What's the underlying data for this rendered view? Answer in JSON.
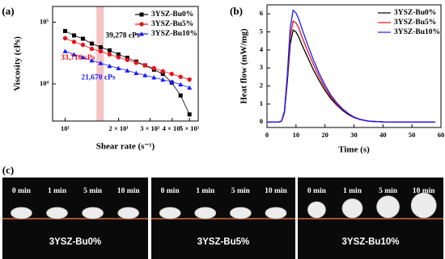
{
  "chart_data": [
    {
      "type": "line",
      "panel_label": "(a)",
      "xlabel": "Shear rate (s⁻¹)",
      "ylabel": "Viscosity (cPs)",
      "xscale": "log",
      "yscale": "log",
      "x": [
        10,
        11.22,
        12.58,
        14.12,
        15.84,
        17.77,
        19.93,
        22.36,
        25.09,
        28.14,
        31.57,
        35.42,
        39.73,
        44.57,
        50
      ],
      "xlim": [
        8.5,
        56
      ],
      "ylim": [
        2500,
        180000
      ],
      "xticks": [
        {
          "value": 10,
          "label": "10¹"
        },
        {
          "value": 20,
          "label": "2 × 10¹"
        },
        {
          "value": 30,
          "label": "3 × 10¹"
        },
        {
          "value": 40,
          "label": "4 × 10¹"
        },
        {
          "value": 50,
          "label": "5 × 10¹"
        }
      ],
      "yticks": [
        {
          "value": 10000,
          "label": "10⁴"
        },
        {
          "value": 100000,
          "label": "10⁵"
        }
      ],
      "highlight": [
        15,
        16.5
      ],
      "highlight_color": "#f4c4c4",
      "legend": "upper right",
      "series": [
        {
          "name": "3YSZ-Bu0%",
          "color": "#000000",
          "marker": "square",
          "values": [
            72000,
            61000,
            54000,
            45000,
            39278,
            35000,
            30000,
            26500,
            23000,
            20000,
            17000,
            14500,
            10500,
            6500,
            3200
          ]
        },
        {
          "name": "3YSZ-Bu5%",
          "color": "#e8141b",
          "marker": "circle",
          "values": [
            55000,
            48000,
            43000,
            37000,
            33710,
            30000,
            27000,
            24500,
            22000,
            20000,
            18000,
            16000,
            14500,
            13000,
            11800
          ]
        },
        {
          "name": "3YSZ-Bu10%",
          "color": "#1a1aff",
          "marker": "triangle",
          "values": [
            34000,
            30000,
            27000,
            24000,
            21670,
            19500,
            18000,
            16500,
            15000,
            13800,
            12700,
            11700,
            10800,
            9800,
            8700
          ]
        }
      ],
      "annotations": [
        "39,278 cPs",
        "33,710 cPs",
        "21,670 cPs"
      ]
    },
    {
      "type": "line",
      "panel_label": "(b)",
      "xlabel": "Time (s)",
      "ylabel": "Heat flow (mW/mg)",
      "x": [
        0,
        2,
        4,
        5,
        6,
        7,
        8,
        9,
        10,
        11,
        12,
        14,
        16,
        18,
        20,
        22,
        24,
        26,
        28,
        30,
        32,
        35,
        40,
        45,
        50,
        55,
        58
      ],
      "xlim": [
        0,
        60
      ],
      "ylim": [
        -0.3,
        6.5
      ],
      "xticks": [
        0,
        10,
        20,
        30,
        40,
        50,
        60
      ],
      "yticks": [
        0,
        1,
        2,
        3,
        4,
        5,
        6
      ],
      "legend": "upper right",
      "series": [
        {
          "name": "3YSZ-Bu0%",
          "color": "#000000",
          "values": [
            0,
            0,
            0,
            0.05,
            0.5,
            2.2,
            4.3,
            5.1,
            5.0,
            4.7,
            4.3,
            3.6,
            2.9,
            2.3,
            1.75,
            1.3,
            0.95,
            0.65,
            0.42,
            0.25,
            0.14,
            0.05,
            0.01,
            0,
            0,
            0,
            0
          ]
        },
        {
          "name": "3YSZ-Bu5%",
          "color": "#e8141b",
          "values": [
            0,
            0,
            0,
            0.05,
            0.55,
            2.4,
            4.7,
            5.6,
            5.5,
            5.2,
            4.75,
            3.95,
            3.2,
            2.5,
            1.9,
            1.4,
            1.0,
            0.7,
            0.45,
            0.27,
            0.15,
            0.05,
            0.01,
            0,
            0,
            0,
            0
          ]
        },
        {
          "name": "3YSZ-Bu10%",
          "color": "#1a1aff",
          "values": [
            0,
            0,
            0,
            0.06,
            0.6,
            2.6,
            5.2,
            6.2,
            6.05,
            5.7,
            5.2,
            4.3,
            3.45,
            2.7,
            2.05,
            1.5,
            1.08,
            0.74,
            0.48,
            0.28,
            0.16,
            0.05,
            0.01,
            0,
            0,
            0,
            0
          ]
        }
      ]
    }
  ],
  "photos": {
    "panel_label": "(c)",
    "groups": [
      {
        "label": "3YSZ-Bu0%",
        "times": [
          "0 min",
          "1 min",
          "5 min",
          "10 min"
        ]
      },
      {
        "label": "3YSZ-Bu5%",
        "times": [
          "0 min",
          "1 min",
          "5 min",
          "10 min"
        ]
      },
      {
        "label": "3YSZ-Bu10%",
        "times": [
          "0 min",
          "1 min",
          "5 min",
          "10 min"
        ]
      }
    ]
  }
}
